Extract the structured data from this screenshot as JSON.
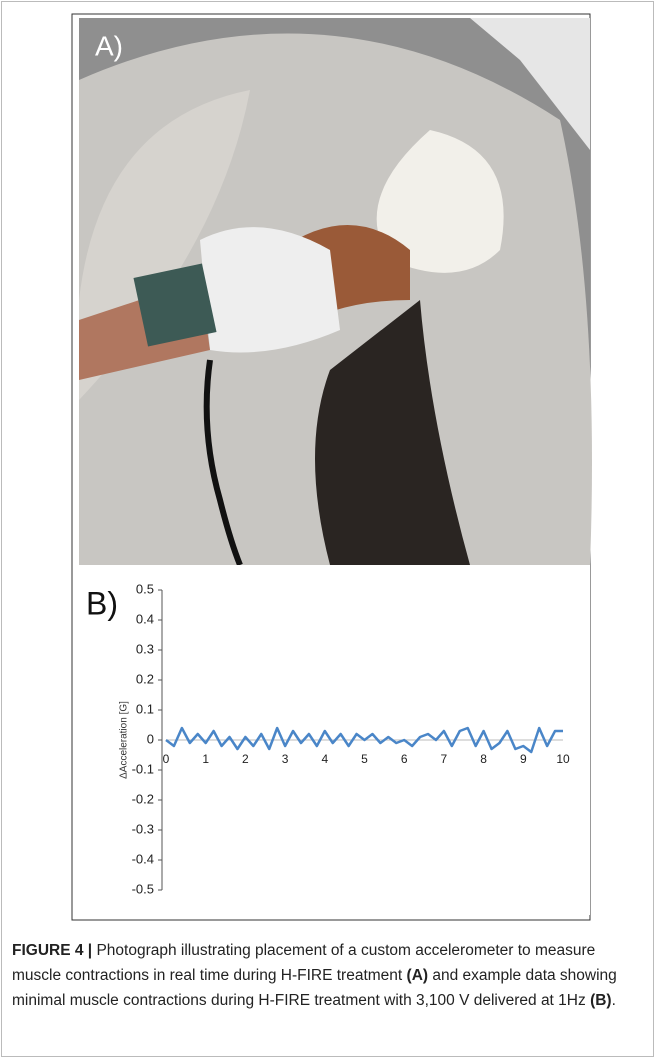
{
  "figure": {
    "panel_a_label": "A)"
  },
  "chart_data": {
    "type": "line",
    "panel_label": "B)",
    "y_label": "ΔAcceleration [G]",
    "x": [
      0,
      0.2,
      0.4,
      0.6,
      0.8,
      1,
      1.2,
      1.4,
      1.6,
      1.8,
      2,
      2.2,
      2.4,
      2.6,
      2.8,
      3,
      3.2,
      3.4,
      3.6,
      3.8,
      4,
      4.2,
      4.4,
      4.6,
      4.8,
      5,
      5.2,
      5.4,
      5.6,
      5.8,
      6,
      6.2,
      6.4,
      6.6,
      6.8,
      7,
      7.2,
      7.4,
      7.6,
      7.8,
      8,
      8.2,
      8.4,
      8.6,
      8.8,
      9,
      9.2,
      9.4,
      9.6,
      9.8,
      10
    ],
    "series": [
      {
        "color": "#4a86c8",
        "values": [
          0,
          -0.02,
          0.04,
          -0.01,
          0.02,
          -0.01,
          0.03,
          -0.02,
          0.01,
          -0.03,
          0.01,
          -0.02,
          0.02,
          -0.03,
          0.04,
          -0.02,
          0.03,
          -0.01,
          0.02,
          -0.02,
          0.03,
          -0.01,
          0.02,
          -0.02,
          0.02,
          0,
          0.02,
          -0.01,
          0.01,
          -0.01,
          0,
          -0.02,
          0.01,
          0.02,
          0,
          0.03,
          -0.02,
          0.03,
          0.04,
          -0.02,
          0.03,
          -0.03,
          -0.01,
          0.03,
          -0.03,
          -0.02,
          -0.04,
          0.04,
          -0.02,
          0.03,
          0.03
        ]
      }
    ],
    "xlim": [
      0,
      10
    ],
    "ylim": [
      -0.5,
      0.5
    ],
    "xticks": [
      0,
      1,
      2,
      3,
      4,
      5,
      6,
      7,
      8,
      9,
      10
    ],
    "yticks": [
      0.5,
      0.4,
      0.3,
      0.2,
      0.1,
      0,
      -0.1,
      -0.2,
      -0.3,
      -0.4,
      -0.5
    ],
    "zero_line": true
  },
  "caption": {
    "label": "FIGURE 4 |",
    "text1": "Photograph illustrating placement of a custom accelerometer to measure muscle contractions in real time during H-FIRE treatment",
    "ref_a": "(A)",
    "text2": "and example data showing minimal muscle contractions during H-FIRE treatment with 3,100 V delivered at 1Hz",
    "ref_b": "(B)",
    "end": "."
  }
}
